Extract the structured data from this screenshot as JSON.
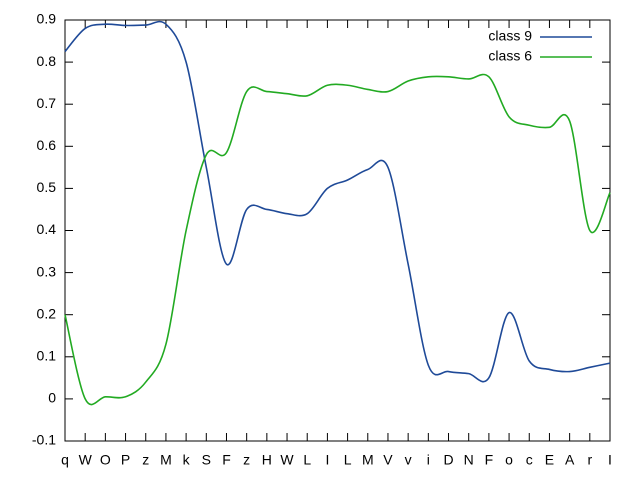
{
  "chart_data": {
    "type": "line",
    "categories": [
      "q",
      "W",
      "O",
      "P",
      "z",
      "M",
      "k",
      "S",
      "F",
      "z",
      "H",
      "W",
      "L",
      "I",
      "L",
      "M",
      "V",
      "v",
      "i",
      "D",
      "N",
      "F",
      "o",
      "c",
      "E",
      "A",
      "r",
      "I"
    ],
    "series": [
      {
        "name": "class 9",
        "color": "#1f4a98",
        "values": [
          0.825,
          0.88,
          0.89,
          0.887,
          0.888,
          0.89,
          0.8,
          0.55,
          0.32,
          0.45,
          0.45,
          0.44,
          0.44,
          0.5,
          0.52,
          0.545,
          0.55,
          0.32,
          0.08,
          0.065,
          0.06,
          0.05,
          0.205,
          0.09,
          0.07,
          0.065,
          0.075,
          0.085
        ]
      },
      {
        "name": "class 6",
        "color": "#22aa22",
        "values": [
          0.2,
          0.0,
          0.005,
          0.005,
          0.04,
          0.13,
          0.4,
          0.58,
          0.585,
          0.73,
          0.73,
          0.725,
          0.72,
          0.745,
          0.745,
          0.735,
          0.73,
          0.755,
          0.765,
          0.765,
          0.76,
          0.765,
          0.67,
          0.65,
          0.645,
          0.66,
          0.4,
          0.49
        ]
      }
    ],
    "ylim": [
      -0.1,
      0.9
    ],
    "yticks": [
      -0.1,
      0,
      0.1,
      0.2,
      0.3,
      0.4,
      0.5,
      0.6,
      0.7,
      0.8,
      0.9
    ],
    "legend": "top-right"
  }
}
